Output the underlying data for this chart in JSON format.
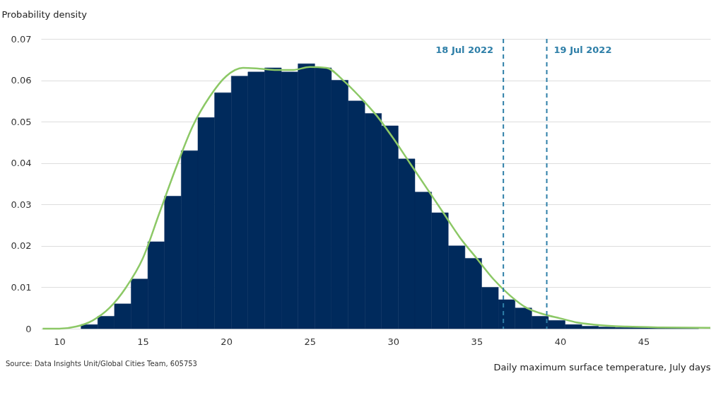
{
  "chart_data": {
    "type": "histogram",
    "ylabel": "Probability density",
    "xlabel": "Daily maximum surface temperature, July days",
    "annotations": [
      "Source: Data Insights Unit/Global Cities Team, 605753"
    ],
    "xlim": [
      8.9,
      49
    ],
    "xticks": [
      10,
      15,
      20,
      25,
      30,
      35,
      40,
      45
    ],
    "ylim": [
      0,
      0.07
    ],
    "yticks": [
      0,
      0.01,
      0.02,
      0.03,
      0.04,
      0.05,
      0.06,
      0.07
    ],
    "grid": "y",
    "series": [
      {
        "type": "histogram",
        "color": "#002a5c",
        "bins": [
          11.3,
          12.3,
          13.3,
          14.3,
          15.3,
          16.3,
          17.3,
          18.3,
          19.3,
          20.3,
          21.3,
          22.3,
          23.3,
          24.3,
          25.3,
          26.3,
          27.3,
          28.3,
          29.3,
          30.3,
          31.3,
          32.3,
          33.3,
          34.3,
          35.3,
          36.3,
          37.3,
          38.3,
          39.3,
          40.3,
          41.3,
          42.3,
          43.3,
          44.3,
          45.3,
          46.3,
          47.3,
          48.3
        ],
        "values": [
          0.001,
          0.003,
          0.006,
          0.012,
          0.021,
          0.032,
          0.043,
          0.051,
          0.057,
          0.061,
          0.062,
          0.063,
          0.062,
          0.064,
          0.063,
          0.06,
          0.055,
          0.052,
          0.049,
          0.041,
          0.033,
          0.028,
          0.02,
          0.017,
          0.01,
          0.007,
          0.005,
          0.003,
          0.002,
          0.001,
          0.0006,
          0.0004,
          0.0003,
          0.0003,
          0.0003,
          0.0002,
          0.0002
        ]
      },
      {
        "type": "line",
        "color": "#8cc866",
        "x": [
          9,
          10,
          11,
          12,
          13,
          14,
          15,
          16,
          17,
          18,
          19,
          20,
          21,
          22,
          23,
          24,
          25,
          26,
          27,
          28,
          29,
          30,
          31,
          32,
          33,
          34,
          35,
          36,
          37,
          38,
          39,
          40,
          41,
          42,
          44,
          46,
          49
        ],
        "values": [
          0,
          0,
          0.0005,
          0.002,
          0.005,
          0.01,
          0.017,
          0.028,
          0.039,
          0.049,
          0.056,
          0.061,
          0.063,
          0.0628,
          0.0625,
          0.0625,
          0.0632,
          0.063,
          0.06,
          0.056,
          0.0515,
          0.046,
          0.04,
          0.034,
          0.028,
          0.022,
          0.017,
          0.012,
          0.008,
          0.005,
          0.0035,
          0.0025,
          0.0015,
          0.001,
          0.0005,
          0.0003,
          0.0002
        ]
      }
    ],
    "ref_lines": [
      {
        "axis": "x",
        "value": 36.6,
        "label": "18 Jul 2022",
        "color": "#2e7fa8",
        "line_style": "dashed"
      },
      {
        "axis": "x",
        "value": 39.2,
        "label": "19 Jul 2022",
        "color": "#2e7fa8",
        "line_style": "dashed"
      }
    ]
  }
}
